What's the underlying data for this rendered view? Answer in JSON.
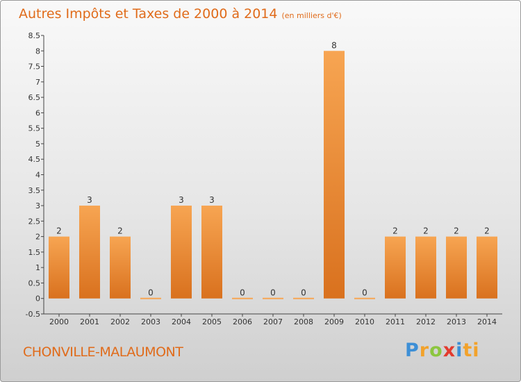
{
  "header": {
    "title": "Autres Impôts et Taxes de 2000 à 2014",
    "unit": "(en milliers d'€)"
  },
  "footer": {
    "commune": "CHONVILLE-MALAUMONT",
    "logo": [
      "P",
      "r",
      "o",
      "x",
      "i",
      "ti"
    ]
  },
  "colors": {
    "accent": "#e06b1a",
    "bar_top": "#f7a552",
    "bar_bottom": "#d9711e"
  },
  "chart_data": {
    "type": "bar",
    "title": "Autres Impôts et Taxes de 2000 à 2014",
    "subtitle": "(en milliers d'€)",
    "categories": [
      "2000",
      "2001",
      "2002",
      "2003",
      "2004",
      "2005",
      "2006",
      "2007",
      "2008",
      "2009",
      "2010",
      "2011",
      "2012",
      "2013",
      "2014"
    ],
    "values": [
      2,
      3,
      2,
      0,
      3,
      3,
      0,
      0,
      0,
      8,
      0,
      2,
      2,
      2,
      2
    ],
    "ylim": [
      -0.5,
      8.5
    ],
    "yticks": [
      "-0.5",
      "0",
      "0.5",
      "1",
      "1.5",
      "2",
      "2.5",
      "3",
      "3.5",
      "4",
      "4.5",
      "5",
      "5.5",
      "6",
      "6.5",
      "7",
      "7.5",
      "8",
      "8.5"
    ],
    "grid": false,
    "legend": "none"
  }
}
